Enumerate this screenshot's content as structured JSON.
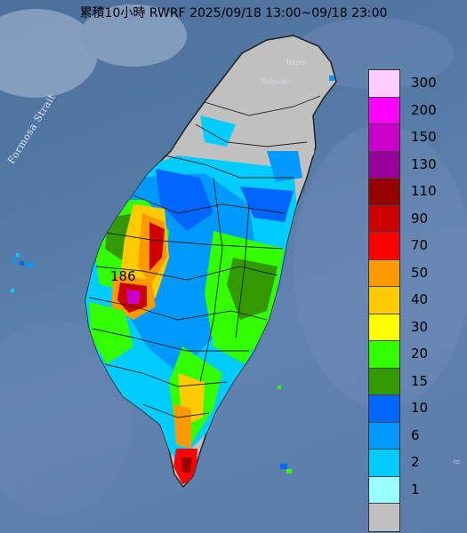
{
  "title": "累積10小時 RWRF 2025/09/18 13:00~09/18 23:00",
  "map_labels": {
    "strait": "Formosa Strait",
    "taipei": "Taipei",
    "taoyuan": "Taoyuan",
    "peak_value": "186",
    "edge_label": "to"
  },
  "legend": {
    "bins": [
      {
        "label": "300",
        "color": "#ffccff"
      },
      {
        "label": "200",
        "color": "#ff00ff"
      },
      {
        "label": "150",
        "color": "#cc00cc"
      },
      {
        "label": "130",
        "color": "#990099"
      },
      {
        "label": "110",
        "color": "#990000"
      },
      {
        "label": "90",
        "color": "#cc0000"
      },
      {
        "label": "70",
        "color": "#ff0000"
      },
      {
        "label": "50",
        "color": "#ff9900"
      },
      {
        "label": "40",
        "color": "#ffcc00"
      },
      {
        "label": "30",
        "color": "#ffff00"
      },
      {
        "label": "20",
        "color": "#33ff00"
      },
      {
        "label": "15",
        "color": "#339900"
      },
      {
        "label": "10",
        "color": "#0066ff"
      },
      {
        "label": "6",
        "color": "#0099ff"
      },
      {
        "label": "2",
        "color": "#00ccff"
      },
      {
        "label": "1",
        "color": "#99ffff"
      },
      {
        "label": "",
        "color": "#c0c0c0"
      }
    ]
  }
}
